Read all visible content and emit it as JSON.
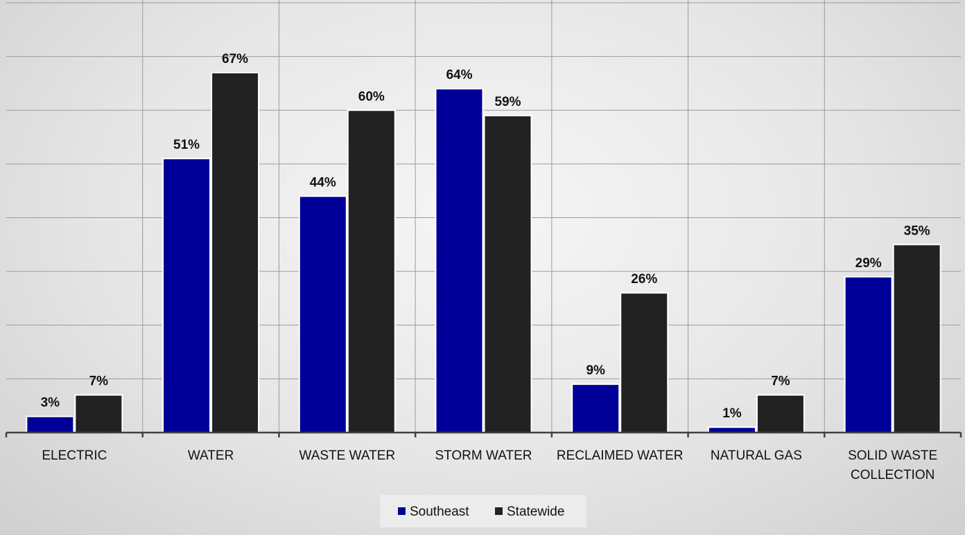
{
  "chart_data": {
    "type": "bar",
    "categories": [
      [
        "ELECTRIC"
      ],
      [
        "WATER"
      ],
      [
        "WASTE WATER"
      ],
      [
        "STORM WATER"
      ],
      [
        "RECLAIMED WATER"
      ],
      [
        "NATURAL GAS"
      ],
      [
        "SOLID WASTE",
        "COLLECTION"
      ]
    ],
    "series": [
      {
        "name": "Southeast",
        "color": "#000099",
        "values": [
          3,
          51,
          44,
          64,
          9,
          1,
          29
        ],
        "labels": [
          "3%",
          "51%",
          "44%",
          "64%",
          "9%",
          "1%",
          "29%"
        ]
      },
      {
        "name": "Statewide",
        "color": "#222222",
        "values": [
          7,
          67,
          60,
          59,
          26,
          7,
          35
        ],
        "labels": [
          "7%",
          "67%",
          "60%",
          "59%",
          "26%",
          "7%",
          "35%"
        ]
      }
    ],
    "ylim": [
      0,
      80
    ],
    "grid": true,
    "legend": "bottom-center",
    "title": "",
    "xlabel": "",
    "ylabel": ""
  }
}
